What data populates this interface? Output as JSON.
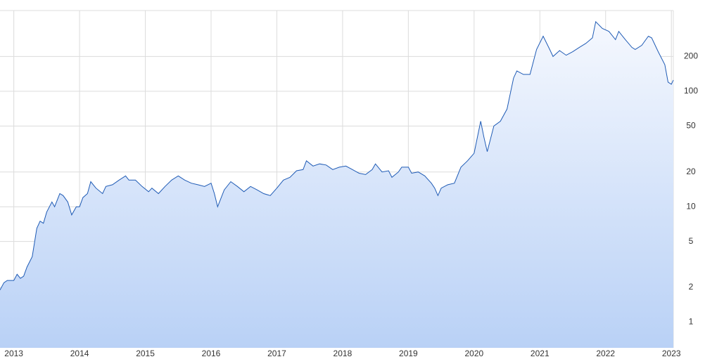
{
  "chart_data": {
    "type": "area",
    "yscale": "log",
    "grid": true,
    "color": "#1f5bb5",
    "x": [
      2012.79,
      2012.85,
      2012.9,
      2013.0,
      2013.05,
      2013.1,
      2013.15,
      2013.2,
      2013.28,
      2013.35,
      2013.4,
      2013.45,
      2013.5,
      2013.58,
      2013.62,
      2013.7,
      2013.75,
      2013.82,
      2013.88,
      2013.95,
      2014.0,
      2014.05,
      2014.12,
      2014.17,
      2014.25,
      2014.35,
      2014.4,
      2014.5,
      2014.6,
      2014.7,
      2014.75,
      2014.85,
      2014.95,
      2015.05,
      2015.1,
      2015.2,
      2015.3,
      2015.4,
      2015.5,
      2015.6,
      2015.7,
      2015.8,
      2015.9,
      2016.0,
      2016.05,
      2016.1,
      2016.2,
      2016.3,
      2016.4,
      2016.5,
      2016.6,
      2016.7,
      2016.8,
      2016.9,
      2017.0,
      2017.1,
      2017.2,
      2017.3,
      2017.4,
      2017.45,
      2017.55,
      2017.65,
      2017.75,
      2017.85,
      2017.95,
      2018.05,
      2018.15,
      2018.25,
      2018.35,
      2018.45,
      2018.5,
      2018.6,
      2018.7,
      2018.75,
      2018.85,
      2018.9,
      2019.0,
      2019.05,
      2019.15,
      2019.25,
      2019.35,
      2019.4,
      2019.45,
      2019.5,
      2019.6,
      2019.7,
      2019.8,
      2019.9,
      2020.0,
      2020.1,
      2020.15,
      2020.2,
      2020.3,
      2020.4,
      2020.5,
      2020.6,
      2020.65,
      2020.75,
      2020.85,
      2020.95,
      2021.05,
      2021.15,
      2021.2,
      2021.3,
      2021.4,
      2021.5,
      2021.6,
      2021.7,
      2021.8,
      2021.85,
      2021.95,
      2022.05,
      2022.15,
      2022.2,
      2022.3,
      2022.4,
      2022.45,
      2022.55,
      2022.65,
      2022.7,
      2022.8,
      2022.9,
      2022.95,
      2023.0,
      2023.03
    ],
    "values": [
      1.9,
      2.2,
      2.3,
      2.3,
      2.6,
      2.4,
      2.5,
      3.0,
      3.7,
      6.5,
      7.5,
      7.2,
      9,
      11,
      10,
      13,
      12.5,
      11,
      8.5,
      10,
      10,
      12,
      13,
      16.5,
      14.5,
      13,
      15,
      15.5,
      17,
      18.5,
      17,
      17,
      15,
      13.5,
      14.5,
      13,
      15,
      17,
      18.5,
      17,
      16,
      15.5,
      15,
      16,
      13,
      10,
      14,
      16.5,
      15,
      13.5,
      15,
      14,
      13,
      12.5,
      14.5,
      17,
      18,
      20.5,
      21,
      25,
      22.5,
      23.5,
      23,
      21,
      22,
      22.5,
      21,
      19.5,
      19,
      21,
      23.5,
      20,
      20.5,
      18,
      20,
      22,
      22,
      19.5,
      20,
      18.5,
      16,
      14.5,
      12.5,
      14.5,
      15.5,
      16,
      22,
      25,
      29,
      55,
      40,
      30,
      50,
      55,
      70,
      130,
      150,
      140,
      140,
      230,
      300,
      230,
      200,
      225,
      205,
      220,
      240,
      260,
      290,
      400,
      350,
      330,
      280,
      330,
      280,
      240,
      230,
      250,
      300,
      290,
      220,
      170,
      120,
      115,
      125
    ],
    "xlim": [
      2012.79,
      2023.03
    ],
    "xticks": [
      2013,
      2014,
      2015,
      2016,
      2017,
      2018,
      2019,
      2020,
      2021,
      2022,
      2023
    ],
    "ylim": [
      0.6,
      500
    ],
    "yticks": [
      1,
      2,
      5,
      10,
      20,
      50,
      100,
      200
    ]
  }
}
